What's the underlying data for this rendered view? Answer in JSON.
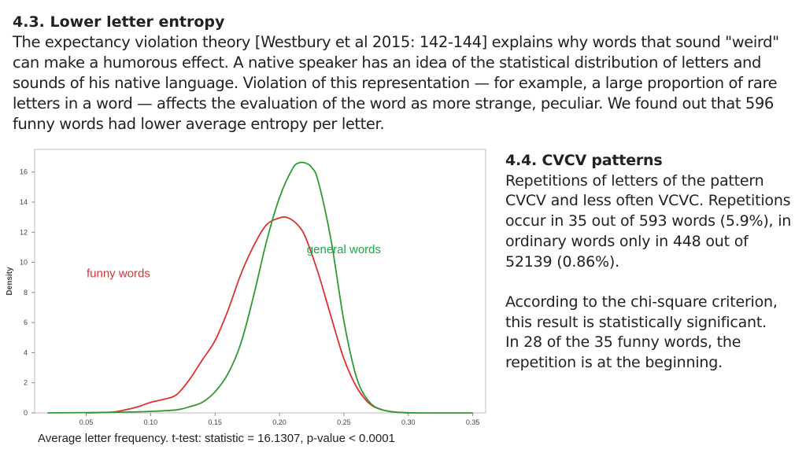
{
  "section": {
    "title": "4.3. Lower letter entropy",
    "body": "The expectancy violation theory [Westbury et al 2015: 142-144] explains why words that sound \"weird\" can make a humorous effect. A native speaker has an idea of the statistical distribution of letters and sounds of his native language. Violation of this representation — for example, a large proportion of rare letters in a word — affects the evaluation of the word as more strange, peculiar. We found out that 596 funny words had lower average entropy per letter."
  },
  "side_panel": {
    "title": "4.4. CVCV patterns",
    "paragraph1": "Repetitions of letters of the pattern CVCV and less often VCVC. Repetitions occur in 35 out of 593 words (5.9%), in ordinary words only in 448 out of 52139 (0.86%).",
    "paragraph2": "According to the chi-square criterion, this result is statistically significant.",
    "paragraph3": "In 28 of the 35 funny words, the repetition is at the beginning."
  },
  "caption": "Average letter frequency. t-test: statistic = 16.1307, p-value < 0.0001",
  "colors": {
    "funny": "#e03030",
    "general": "#2e9a35",
    "general_label": "#1aa84a",
    "axis": "#bbbbbb"
  },
  "chart_data": {
    "type": "line",
    "title": "",
    "xlabel": "",
    "ylabel": "Density",
    "xlim": [
      0.01,
      0.36
    ],
    "ylim": [
      0,
      17.5
    ],
    "xticks": [
      0.05,
      0.1,
      0.15,
      0.2,
      0.25,
      0.3,
      0.35
    ],
    "xtick_labels": [
      "0.05",
      "0.10",
      "0.15",
      "0.20",
      "0.25",
      "0.30",
      "0.35"
    ],
    "yticks": [
      0,
      2,
      4,
      6,
      8,
      10,
      12,
      14,
      16
    ],
    "ytick_labels": [
      "0",
      "2",
      "4",
      "6",
      "8",
      "10",
      "12",
      "14",
      "16"
    ],
    "series": [
      {
        "name": "funny words",
        "x": [
          0.05,
          0.07,
          0.08,
          0.09,
          0.1,
          0.11,
          0.12,
          0.13,
          0.14,
          0.15,
          0.16,
          0.17,
          0.18,
          0.19,
          0.2,
          0.205,
          0.21,
          0.215,
          0.22,
          0.23,
          0.24,
          0.25,
          0.26,
          0.27,
          0.28,
          0.29,
          0.3
        ],
        "y": [
          0.0,
          0.05,
          0.2,
          0.4,
          0.7,
          0.9,
          1.2,
          2.2,
          3.5,
          4.8,
          6.8,
          9.2,
          11.1,
          12.5,
          12.95,
          13.0,
          12.8,
          12.4,
          11.7,
          9.3,
          6.4,
          3.6,
          1.7,
          0.6,
          0.2,
          0.05,
          0.0
        ]
      },
      {
        "name": "general words",
        "x": [
          0.02,
          0.05,
          0.08,
          0.1,
          0.12,
          0.13,
          0.14,
          0.15,
          0.16,
          0.17,
          0.18,
          0.19,
          0.2,
          0.21,
          0.215,
          0.22,
          0.225,
          0.23,
          0.24,
          0.25,
          0.26,
          0.27,
          0.28,
          0.29,
          0.3,
          0.32,
          0.35
        ],
        "y": [
          0.0,
          0.02,
          0.05,
          0.1,
          0.2,
          0.4,
          0.7,
          1.4,
          2.6,
          4.6,
          7.8,
          11.4,
          14.3,
          16.2,
          16.6,
          16.6,
          16.3,
          15.4,
          11.5,
          6.1,
          2.3,
          0.7,
          0.2,
          0.05,
          0.01,
          0.0,
          0.0
        ]
      }
    ],
    "annotations": [
      {
        "text": "funny words",
        "series": "funny words"
      },
      {
        "text": "general words",
        "series": "general words"
      }
    ]
  }
}
